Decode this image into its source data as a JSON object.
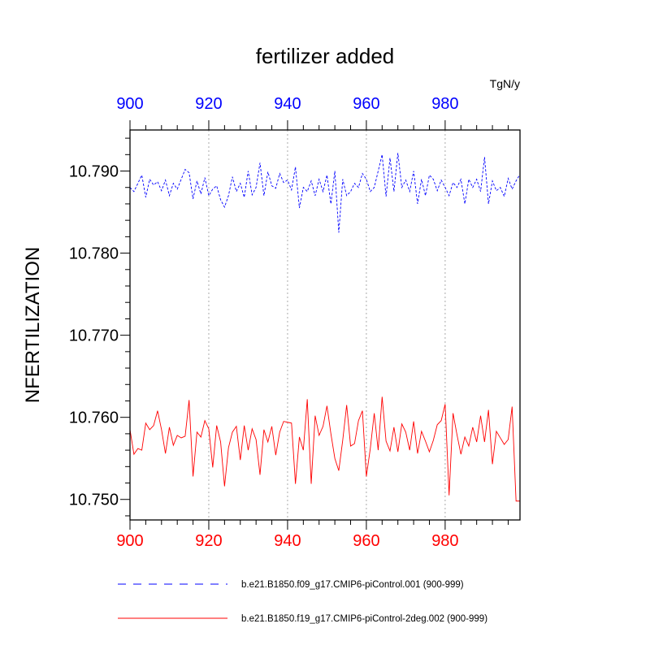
{
  "chart_data": {
    "type": "line",
    "title": "fertilizer added",
    "units": "TgN/y",
    "ylabel": "NFERTILIZATION",
    "xlabel": "",
    "xlim": [
      900,
      999
    ],
    "ylim": [
      10.7475,
      10.795
    ],
    "x_ticks": [
      900,
      920,
      940,
      960,
      980
    ],
    "x_tick_labels": [
      "900",
      "920",
      "940",
      "960",
      "980"
    ],
    "y_ticks": [
      10.75,
      10.76,
      10.77,
      10.78,
      10.79
    ],
    "y_tick_labels": [
      "10.750",
      "10.760",
      "10.770",
      "10.780",
      "10.790"
    ],
    "grid": "vertical dotted at major x ticks",
    "top_axis_color": "#0000ff",
    "bottom_axis_color": "#ff0000",
    "series": [
      {
        "name": "b.e21.B1850.f09_g17.CMIP6-piControl.001 (900-999)",
        "color": "#0000ff",
        "style": "dashed",
        "x_start": 900,
        "values": [
          10.788,
          10.7875,
          10.7885,
          10.7895,
          10.7868,
          10.789,
          10.7883,
          10.7887,
          10.7876,
          10.7889,
          10.787,
          10.7885,
          10.7878,
          10.789,
          10.7902,
          10.7898,
          10.7866,
          10.7888,
          10.7872,
          10.7892,
          10.787,
          10.7878,
          10.7882,
          10.7865,
          10.7856,
          10.787,
          10.7893,
          10.7875,
          10.7885,
          10.7868,
          10.79,
          10.7871,
          10.788,
          10.791,
          10.787,
          10.7899,
          10.7882,
          10.7879,
          10.7897,
          10.7886,
          10.7889,
          10.7877,
          10.7905,
          10.7855,
          10.788,
          10.7875,
          10.7888,
          10.787,
          10.789,
          10.7875,
          10.7895,
          10.786,
          10.79,
          10.7825,
          10.789,
          10.787,
          10.7875,
          10.7885,
          10.788,
          10.7897,
          10.789,
          10.7875,
          10.788,
          10.79,
          10.792,
          10.7869,
          10.7916,
          10.7875,
          10.7922,
          10.788,
          10.7889,
          10.7875,
          10.79,
          10.786,
          10.789,
          10.787,
          10.7895,
          10.789,
          10.7876,
          10.7889,
          10.788,
          10.787,
          10.7886,
          10.788,
          10.789,
          10.786,
          10.789,
          10.788,
          10.789,
          10.7875,
          10.7917,
          10.786,
          10.7888,
          10.7876,
          10.788,
          10.7869,
          10.7891,
          10.7878,
          10.7888,
          10.7896
        ]
      },
      {
        "name": "b.e21.B1850.f19_g17.CMIP6-piControl-2deg.002 (900-999)",
        "color": "#ff0000",
        "style": "solid",
        "x_start": 900,
        "values": [
          10.7585,
          10.7555,
          10.7562,
          10.756,
          10.7593,
          10.7585,
          10.759,
          10.7608,
          10.7585,
          10.7556,
          10.7588,
          10.7566,
          10.7578,
          10.7575,
          10.7577,
          10.7621,
          10.7528,
          10.7582,
          10.7576,
          10.7596,
          10.7586,
          10.7539,
          10.759,
          10.757,
          10.7516,
          10.7563,
          10.7582,
          10.7589,
          10.7548,
          10.759,
          10.756,
          10.7586,
          10.7573,
          10.753,
          10.7585,
          10.757,
          10.7589,
          10.7554,
          10.7582,
          10.7595,
          10.7594,
          10.7593,
          10.7519,
          10.7576,
          10.756,
          10.7622,
          10.7519,
          10.7602,
          10.7578,
          10.7589,
          10.7614,
          10.758,
          10.755,
          10.7535,
          10.7572,
          10.7615,
          10.7565,
          10.7568,
          10.7596,
          10.7608,
          10.7528,
          10.7562,
          10.7605,
          10.756,
          10.7625,
          10.7571,
          10.7559,
          10.7588,
          10.7558,
          10.7592,
          10.7582,
          10.756,
          10.7595,
          10.7556,
          10.7583,
          10.7571,
          10.7558,
          10.7572,
          10.7591,
          10.7596,
          10.7616,
          10.7505,
          10.7605,
          10.7579,
          10.7555,
          10.7576,
          10.7565,
          10.7588,
          10.757,
          10.7602,
          10.757,
          10.7609,
          10.7543,
          10.7583,
          10.7575,
          10.7567,
          10.7573,
          10.7613,
          10.7498,
          10.7498
        ]
      }
    ]
  }
}
